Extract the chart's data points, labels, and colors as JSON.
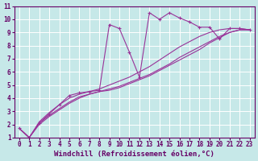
{
  "xlabel": "Windchill (Refroidissement éolien,°C)",
  "ylabel": "",
  "xlim": [
    -0.5,
    23.5
  ],
  "ylim": [
    1,
    11
  ],
  "xticks": [
    0,
    1,
    2,
    3,
    4,
    5,
    6,
    7,
    8,
    9,
    10,
    11,
    12,
    13,
    14,
    15,
    16,
    17,
    18,
    19,
    20,
    21,
    22,
    23
  ],
  "yticks": [
    1,
    2,
    3,
    4,
    5,
    6,
    7,
    8,
    9,
    10,
    11
  ],
  "background_color": "#c6e8e8",
  "grid_color": "#ffffff",
  "line_color": "#993399",
  "series": [
    {
      "x": [
        0,
        1,
        2,
        3,
        4,
        5,
        6,
        7,
        8,
        9,
        10,
        11,
        12,
        13,
        14,
        15,
        16,
        17,
        18,
        19,
        20,
        21,
        22,
        23
      ],
      "y": [
        1.7,
        1.0,
        2.1,
        2.8,
        3.5,
        4.2,
        4.4,
        4.5,
        4.6,
        9.6,
        9.3,
        7.5,
        5.6,
        10.5,
        10.0,
        10.5,
        10.1,
        9.8,
        9.4,
        9.4,
        8.5,
        9.3,
        9.3,
        9.2
      ],
      "marker": "+"
    },
    {
      "x": [
        0,
        1,
        2,
        3,
        4,
        5,
        6,
        7,
        8,
        9,
        10,
        11,
        12,
        13,
        14,
        15,
        16,
        17,
        18,
        19,
        20,
        21,
        22,
        23
      ],
      "y": [
        1.7,
        1.0,
        2.1,
        2.7,
        3.2,
        3.7,
        4.1,
        4.3,
        4.5,
        4.7,
        4.9,
        5.2,
        5.5,
        5.8,
        6.2,
        6.6,
        7.1,
        7.5,
        7.9,
        8.3,
        8.7,
        9.0,
        9.2,
        9.2
      ],
      "marker": null
    },
    {
      "x": [
        0,
        1,
        2,
        3,
        4,
        5,
        6,
        7,
        8,
        9,
        10,
        11,
        12,
        13,
        14,
        15,
        16,
        17,
        18,
        19,
        20,
        21,
        22,
        23
      ],
      "y": [
        1.7,
        1.0,
        2.2,
        2.9,
        3.5,
        4.0,
        4.3,
        4.5,
        4.7,
        5.0,
        5.3,
        5.6,
        6.0,
        6.4,
        6.9,
        7.4,
        7.9,
        8.3,
        8.7,
        9.0,
        9.2,
        9.3,
        9.3,
        9.2
      ],
      "marker": null
    },
    {
      "x": [
        0,
        1,
        2,
        3,
        4,
        5,
        6,
        7,
        8,
        9,
        10,
        11,
        12,
        13,
        14,
        15,
        16,
        17,
        18,
        19,
        20,
        21,
        22,
        23
      ],
      "y": [
        1.7,
        1.0,
        2.0,
        2.6,
        3.1,
        3.6,
        4.0,
        4.3,
        4.5,
        4.6,
        4.8,
        5.1,
        5.4,
        5.7,
        6.1,
        6.5,
        6.9,
        7.3,
        7.7,
        8.2,
        8.6,
        9.0,
        9.2,
        9.2
      ],
      "marker": null
    }
  ],
  "tick_fontsize": 5.5,
  "label_fontsize": 6.5,
  "xlabel_fontfamily": "monospace"
}
